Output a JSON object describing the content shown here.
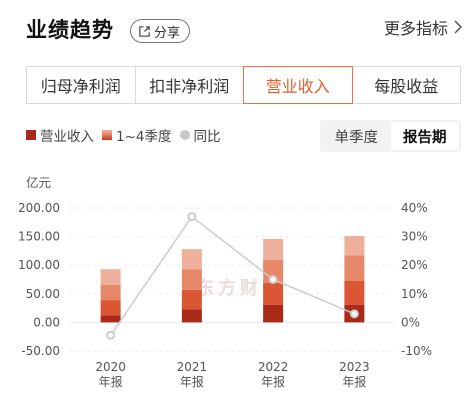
{
  "header": {
    "title": "业绩趋势",
    "share_label": "分享",
    "more_label": "更多指标"
  },
  "tabs": [
    {
      "label": "归母净利润",
      "active": false
    },
    {
      "label": "扣非净利润",
      "active": false
    },
    {
      "label": "营业收入",
      "active": true
    },
    {
      "label": "每股收益",
      "active": false
    }
  ],
  "legend": {
    "revenue": "营业收入",
    "quarters": "1~4季度",
    "yoy": "同比"
  },
  "period_toggle": {
    "single_quarter": "单季度",
    "report_period": "报告期",
    "active": "报告期"
  },
  "watermark": "东方财富",
  "colors": {
    "accent": "#e0602e",
    "q1": "#a82a17",
    "q2": "#db5634",
    "q3": "#e68768",
    "q4": "#eeb09b",
    "yoy_line": "#cccccc"
  },
  "chart_data": {
    "type": "bar",
    "stacked": true,
    "unit": "亿元",
    "categories": [
      "2020\n年报",
      "2021\n年报",
      "2022\n年报",
      "2023\n年报"
    ],
    "series": [
      {
        "name": "Q1",
        "values": [
          12,
          23,
          31,
          31
        ]
      },
      {
        "name": "Q2",
        "values": [
          27,
          34,
          38,
          42
        ]
      },
      {
        "name": "Q3",
        "values": [
          27,
          36,
          40,
          44
        ]
      },
      {
        "name": "Q4",
        "values": [
          27,
          35,
          37,
          34
        ]
      }
    ],
    "yoy": {
      "name": "同比",
      "values": [
        -4.5,
        37,
        15,
        3
      ]
    },
    "y_left": {
      "min": -50,
      "max": 200,
      "ticks": [
        "200.00",
        "150.00",
        "100.00",
        "50.00",
        "0.00",
        "-50.00"
      ],
      "tick_values": [
        200,
        150,
        100,
        50,
        0,
        -50
      ]
    },
    "y_right": {
      "min": -10,
      "max": 40,
      "ticks": [
        "40%",
        "30%",
        "20%",
        "10%",
        "0%",
        "-10%"
      ],
      "tick_values": [
        40,
        30,
        20,
        10,
        0,
        -10
      ]
    },
    "grid": true
  }
}
